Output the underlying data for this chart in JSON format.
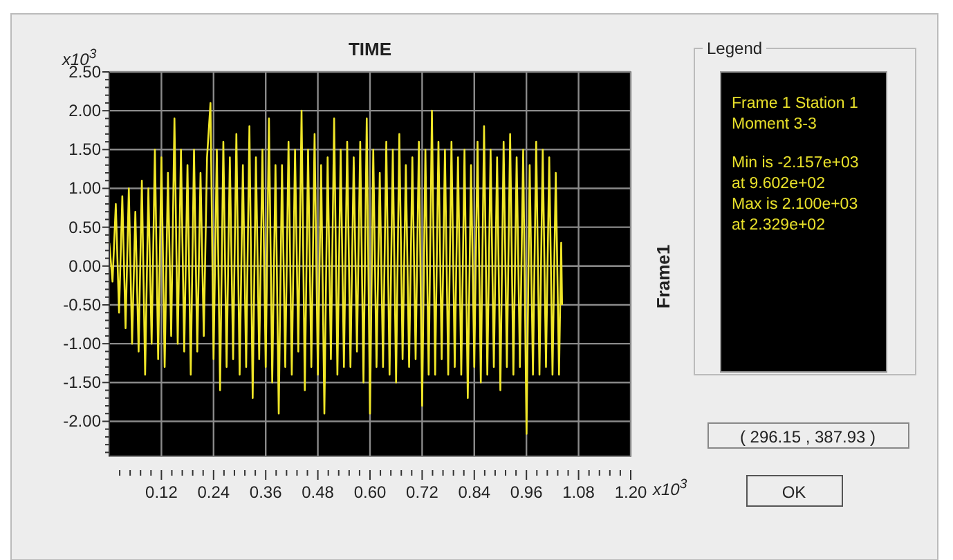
{
  "chart_data": {
    "type": "line",
    "title": "TIME",
    "xlim": [
      0,
      1.2
    ],
    "xticks": [
      {
        "value": 0.024,
        "label": null
      },
      {
        "value": 0.048,
        "label": null
      },
      {
        "value": 0.072,
        "label": null
      },
      {
        "value": 0.096,
        "label": null
      },
      {
        "value": 0.12,
        "label": "0.12"
      },
      {
        "value": 0.144,
        "label": null
      },
      {
        "value": 0.168,
        "label": null
      },
      {
        "value": 0.192,
        "label": null
      },
      {
        "value": 0.216,
        "label": null
      },
      {
        "value": 0.24,
        "label": "0.24"
      },
      {
        "value": 0.264,
        "label": null
      },
      {
        "value": 0.288,
        "label": null
      },
      {
        "value": 0.312,
        "label": null
      },
      {
        "value": 0.336,
        "label": null
      },
      {
        "value": 0.36,
        "label": "0.36"
      },
      {
        "value": 0.384,
        "label": null
      },
      {
        "value": 0.408,
        "label": null
      },
      {
        "value": 0.432,
        "label": null
      },
      {
        "value": 0.456,
        "label": null
      },
      {
        "value": 0.48,
        "label": "0.48"
      },
      {
        "value": 0.504,
        "label": null
      },
      {
        "value": 0.528,
        "label": null
      },
      {
        "value": 0.552,
        "label": null
      },
      {
        "value": 0.576,
        "label": null
      },
      {
        "value": 0.6,
        "label": "0.60"
      },
      {
        "value": 0.624,
        "label": null
      },
      {
        "value": 0.648,
        "label": null
      },
      {
        "value": 0.672,
        "label": null
      },
      {
        "value": 0.696,
        "label": null
      },
      {
        "value": 0.72,
        "label": "0.72"
      },
      {
        "value": 0.744,
        "label": null
      },
      {
        "value": 0.768,
        "label": null
      },
      {
        "value": 0.792,
        "label": null
      },
      {
        "value": 0.816,
        "label": null
      },
      {
        "value": 0.84,
        "label": "0.84"
      },
      {
        "value": 0.864,
        "label": null
      },
      {
        "value": 0.888,
        "label": null
      },
      {
        "value": 0.912,
        "label": null
      },
      {
        "value": 0.936,
        "label": null
      },
      {
        "value": 0.96,
        "label": "0.96"
      },
      {
        "value": 0.984,
        "label": null
      },
      {
        "value": 1.008,
        "label": null
      },
      {
        "value": 1.032,
        "label": null
      },
      {
        "value": 1.056,
        "label": null
      },
      {
        "value": 1.08,
        "label": "1.08"
      },
      {
        "value": 1.104,
        "label": null
      },
      {
        "value": 1.128,
        "label": null
      },
      {
        "value": 1.152,
        "label": null
      },
      {
        "value": 1.176,
        "label": null
      },
      {
        "value": 1.2,
        "label": "1.20"
      }
    ],
    "ylim": [
      -2.45,
      2.5
    ],
    "yticks": [
      {
        "value": -2.4,
        "label": null
      },
      {
        "value": -2.3,
        "label": null
      },
      {
        "value": -2.2,
        "label": null
      },
      {
        "value": -2.1,
        "label": null
      },
      {
        "value": -2.0,
        "label": "-2.00"
      },
      {
        "value": -1.9,
        "label": null
      },
      {
        "value": -1.8,
        "label": null
      },
      {
        "value": -1.7,
        "label": null
      },
      {
        "value": -1.6,
        "label": null
      },
      {
        "value": -1.5,
        "label": "-1.50"
      },
      {
        "value": -1.4,
        "label": null
      },
      {
        "value": -1.3,
        "label": null
      },
      {
        "value": -1.2,
        "label": null
      },
      {
        "value": -1.1,
        "label": null
      },
      {
        "value": -1.0,
        "label": "-1.00"
      },
      {
        "value": -0.9,
        "label": null
      },
      {
        "value": -0.8,
        "label": null
      },
      {
        "value": -0.7,
        "label": null
      },
      {
        "value": -0.6,
        "label": null
      },
      {
        "value": -0.5,
        "label": "-0.50"
      },
      {
        "value": -0.4,
        "label": null
      },
      {
        "value": -0.3,
        "label": null
      },
      {
        "value": -0.2,
        "label": null
      },
      {
        "value": -0.1,
        "label": null
      },
      {
        "value": 0,
        "label": "0.00"
      },
      {
        "value": 0.1,
        "label": null
      },
      {
        "value": 0.2,
        "label": null
      },
      {
        "value": 0.3,
        "label": null
      },
      {
        "value": 0.4,
        "label": null
      },
      {
        "value": 0.5,
        "label": "0.50"
      },
      {
        "value": 0.6,
        "label": null
      },
      {
        "value": 0.7,
        "label": null
      },
      {
        "value": 0.8,
        "label": null
      },
      {
        "value": 0.9,
        "label": null
      },
      {
        "value": 1.0,
        "label": "1.00"
      },
      {
        "value": 1.1,
        "label": null
      },
      {
        "value": 1.2,
        "label": null
      },
      {
        "value": 1.3,
        "label": null
      },
      {
        "value": 1.4,
        "label": null
      },
      {
        "value": 1.5,
        "label": "1.50"
      },
      {
        "value": 1.6,
        "label": null
      },
      {
        "value": 1.7,
        "label": null
      },
      {
        "value": 1.8,
        "label": null
      },
      {
        "value": 1.9,
        "label": null
      },
      {
        "value": 2.0,
        "label": "2.00"
      },
      {
        "value": 2.1,
        "label": null
      },
      {
        "value": 2.2,
        "label": null
      },
      {
        "value": 2.3,
        "label": null
      },
      {
        "value": 2.4,
        "label": null
      },
      {
        "value": 2.5,
        "label": "2.50"
      }
    ],
    "grid": true,
    "marker": "none",
    "line_style": "solid",
    "series": [
      {
        "color": "#f0e628",
        "x": [
          0,
          0.0075,
          0.015,
          0.0225,
          0.03,
          0.0375,
          0.045,
          0.0525,
          0.06,
          0.0675,
          0.075,
          0.0825,
          0.09,
          0.0975,
          0.105,
          0.1125,
          0.12,
          0.1275,
          0.135,
          0.1425,
          0.15,
          0.1575,
          0.165,
          0.1725,
          0.18,
          0.1875,
          0.195,
          0.2025,
          0.21,
          0.2175,
          0.225,
          0.2329,
          0.24,
          0.2475,
          0.255,
          0.2625,
          0.27,
          0.2775,
          0.285,
          0.2925,
          0.3,
          0.3075,
          0.315,
          0.3225,
          0.33,
          0.3375,
          0.345,
          0.3525,
          0.36,
          0.3675,
          0.375,
          0.3825,
          0.39,
          0.3975,
          0.405,
          0.4125,
          0.42,
          0.4275,
          0.435,
          0.4425,
          0.45,
          0.4575,
          0.465,
          0.4725,
          0.48,
          0.4875,
          0.495,
          0.5025,
          0.51,
          0.5175,
          0.525,
          0.5325,
          0.54,
          0.5475,
          0.555,
          0.5625,
          0.57,
          0.5775,
          0.585,
          0.5925,
          0.6,
          0.6075,
          0.615,
          0.6225,
          0.63,
          0.6375,
          0.645,
          0.6525,
          0.66,
          0.6675,
          0.675,
          0.6825,
          0.69,
          0.6975,
          0.705,
          0.7125,
          0.72,
          0.7275,
          0.735,
          0.7425,
          0.75,
          0.7575,
          0.765,
          0.7725,
          0.78,
          0.7875,
          0.795,
          0.8025,
          0.81,
          0.8175,
          0.825,
          0.8325,
          0.84,
          0.8475,
          0.855,
          0.8625,
          0.87,
          0.8775,
          0.885,
          0.8925,
          0.9,
          0.9075,
          0.915,
          0.9225,
          0.93,
          0.9375,
          0.945,
          0.9525,
          0.9602,
          0.9675,
          0.975,
          0.9825,
          0.99,
          0.9975,
          1.005,
          1.0125,
          1.02,
          1.0275,
          1.035,
          1.04,
          1.042
        ],
        "values": [
          0.3,
          -0.2,
          0.8,
          -0.6,
          0.9,
          -0.8,
          1.0,
          -1.0,
          0.7,
          -1.1,
          1.1,
          -1.4,
          1.0,
          -1.0,
          1.5,
          -1.2,
          1.4,
          -1.3,
          1.2,
          -0.9,
          1.9,
          -1.0,
          1.5,
          -1.1,
          1.3,
          -1.4,
          1.5,
          -1.1,
          1.2,
          -0.9,
          1.4,
          2.1,
          -1.2,
          1.5,
          -1.6,
          1.6,
          -1.3,
          1.4,
          -1.2,
          1.7,
          -1.4,
          1.3,
          -1.3,
          1.8,
          -1.7,
          1.4,
          -1.2,
          1.5,
          -1.3,
          1.9,
          -1.5,
          1.3,
          -1.9,
          1.3,
          -1.3,
          1.6,
          -1.4,
          1.5,
          -1.1,
          2.0,
          -1.6,
          1.5,
          -1.3,
          1.7,
          -1.4,
          1.3,
          -1.9,
          1.4,
          -1.2,
          1.9,
          -1.4,
          1.5,
          -1.3,
          1.6,
          -1.3,
          1.4,
          -1.1,
          1.6,
          -1.5,
          1.9,
          -1.9,
          1.5,
          -1.3,
          1.2,
          -1.3,
          1.6,
          -1.4,
          1.5,
          -1.5,
          1.7,
          -1.2,
          1.3,
          -1.3,
          1.4,
          -1.2,
          1.6,
          -1.8,
          1.5,
          -1.4,
          2.0,
          -1.4,
          1.6,
          -1.2,
          1.5,
          -1.4,
          1.6,
          -1.3,
          1.4,
          -1.4,
          1.5,
          -1.7,
          1.3,
          -1.3,
          1.6,
          -1.5,
          1.8,
          -1.4,
          1.5,
          -1.3,
          1.4,
          -1.6,
          1.6,
          -1.3,
          1.7,
          -1.4,
          1.4,
          -1.3,
          1.5,
          -2.16,
          1.3,
          -1.4,
          1.6,
          -1.4,
          1.5,
          -1.3,
          1.4,
          -1.4,
          1.2,
          -1.4,
          0.3,
          -0.5
        ]
      }
    ],
    "annotations": [
      "x10$^{3}$",
      "x10$^{3}$",
      "Frame1",
      "Legend",
      "Frame 1  Station 1",
      "Moment 3-3",
      "Min is -2.157e+03",
      "at 9.602e+02",
      "Max is 2.100e+03",
      "at 2.329e+02",
      "( 296.15 , 387.93 )",
      "OK"
    ]
  }
}
